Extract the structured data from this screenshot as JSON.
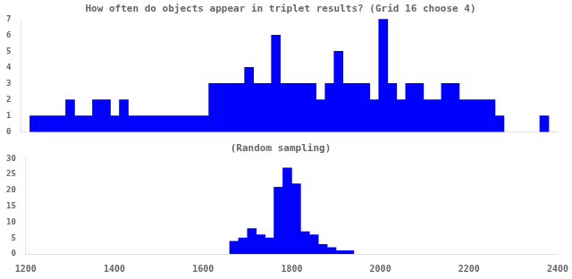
{
  "chart_data": [
    {
      "type": "histogram",
      "title": "How often do objects appear in triplet results? (Grid 16 choose 4)",
      "x": [
        1220,
        1240,
        1260,
        1280,
        1300,
        1320,
        1340,
        1360,
        1380,
        1400,
        1420,
        1440,
        1460,
        1480,
        1500,
        1520,
        1540,
        1560,
        1580,
        1600,
        1620,
        1640,
        1660,
        1680,
        1700,
        1720,
        1740,
        1760,
        1780,
        1800,
        1820,
        1840,
        1860,
        1880,
        1900,
        1920,
        1940,
        1960,
        1980,
        2000,
        2020,
        2040,
        2060,
        2080,
        2100,
        2120,
        2140,
        2160,
        2180,
        2200,
        2220,
        2240,
        2260,
        2360
      ],
      "values": [
        1,
        1,
        1,
        1,
        2,
        1,
        1,
        2,
        2,
        1,
        2,
        1,
        1,
        1,
        1,
        1,
        1,
        1,
        1,
        1,
        3,
        3,
        3,
        3,
        4,
        3,
        3,
        6,
        3,
        3,
        3,
        3,
        2,
        3,
        5,
        3,
        3,
        3,
        2,
        7,
        3,
        2,
        3,
        3,
        2,
        2,
        3,
        3,
        2,
        2,
        2,
        2,
        1,
        1
      ],
      "bin_width": 20,
      "color": "#0000FF",
      "xlim": [
        1200,
        2400
      ],
      "ylim": [
        0,
        7
      ],
      "yticks": [
        0,
        1,
        2,
        3,
        4,
        5,
        6,
        7
      ],
      "tick_labels": "y",
      "grid": false
    },
    {
      "type": "histogram",
      "title": "(Random sampling)",
      "x": [
        1660,
        1680,
        1700,
        1720,
        1740,
        1760,
        1780,
        1800,
        1820,
        1840,
        1860,
        1880,
        1900,
        1920
      ],
      "values": [
        4,
        5,
        8,
        6,
        5,
        21,
        27,
        22,
        7,
        6,
        3,
        2,
        1,
        1
      ],
      "bin_width": 20,
      "color": "#0000FF",
      "xlim": [
        1200,
        2400
      ],
      "xticks": [
        1200,
        1400,
        1600,
        1800,
        2000,
        2200,
        2400
      ],
      "ylim": [
        0,
        30
      ],
      "yticks": [
        0,
        5,
        10,
        15,
        20,
        25,
        30
      ],
      "grid": false
    }
  ]
}
